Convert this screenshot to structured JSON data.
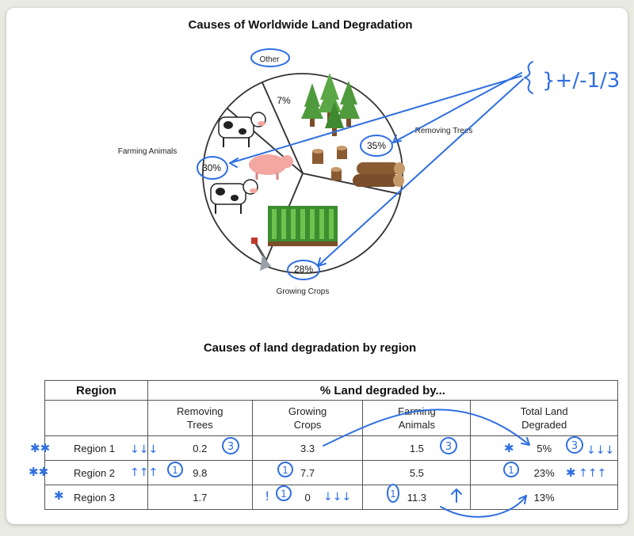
{
  "chart_data": [
    {
      "type": "pie",
      "title": "Causes of Worldwide Land Degradation",
      "categories": [
        "Removing Trees",
        "Growing Crops",
        "Farming Animals",
        "Other"
      ],
      "values": [
        35,
        28,
        30,
        7
      ],
      "labels": [
        "35%",
        "28%",
        "30%",
        "7%"
      ],
      "legend": "none"
    },
    {
      "type": "table",
      "title": "Causes of land degradation by region",
      "group_header": "% Land degraded by...",
      "columns": [
        "Region",
        "Removing Trees",
        "Growing Crops",
        "Farming Animals",
        "Total Land Degraded"
      ],
      "rows": [
        [
          "Region 1",
          "0.2",
          "3.3",
          "1.5",
          "5%"
        ],
        [
          "Region 2",
          "9.8",
          "7.7",
          "5.5",
          "23%"
        ],
        [
          "Region 3",
          "1.7",
          "0",
          "11.3",
          "13%"
        ]
      ]
    }
  ],
  "pie": {
    "title": "Causes of Worldwide Land Degradation",
    "labels": {
      "removing_trees": "Removing Trees",
      "growing_crops": "Growing Crops",
      "farming_animals": "Farming Animals",
      "other": "Other"
    },
    "percents": {
      "removing_trees": "35%",
      "growing_crops": "28%",
      "farming_animals": "30%",
      "other": "7%"
    }
  },
  "table": {
    "title": "Causes of land degradation by region",
    "region_header": "Region",
    "group_header": "% Land degraded by...",
    "subheaders": [
      {
        "line1": "Removing",
        "line2": "Trees"
      },
      {
        "line1": "Growing",
        "line2": "Crops"
      },
      {
        "line1": "Farming",
        "line2": "Animals"
      },
      {
        "line1": "Total Land",
        "line2": "Degraded"
      }
    ],
    "rows": [
      {
        "region": "Region 1",
        "trees": "0.2",
        "crops": "3.3",
        "animals": "1.5",
        "total": "5%"
      },
      {
        "region": "Region 2",
        "trees": "9.8",
        "crops": "7.7",
        "animals": "5.5",
        "total": "23%"
      },
      {
        "region": "Region 3",
        "trees": "1.7",
        "crops": "0",
        "animals": "11.3",
        "total": "13%"
      }
    ]
  },
  "annotations": {
    "pie_note": "}+/-1/3",
    "rank_marks": [
      "3",
      "1",
      "1",
      "3",
      "1",
      "3",
      "1"
    ],
    "exclaim": "!",
    "ink_color": "#2f6fe0"
  },
  "colors": {
    "pie_fill": "#ffffff",
    "pie_stroke": "#333333",
    "ink": "#2f6fe0",
    "tree_green": "#4f9a3c",
    "crop_green": "#3c8d2f",
    "log_brown": "#8a5a32",
    "pig_pink": "#f2a7a0"
  }
}
